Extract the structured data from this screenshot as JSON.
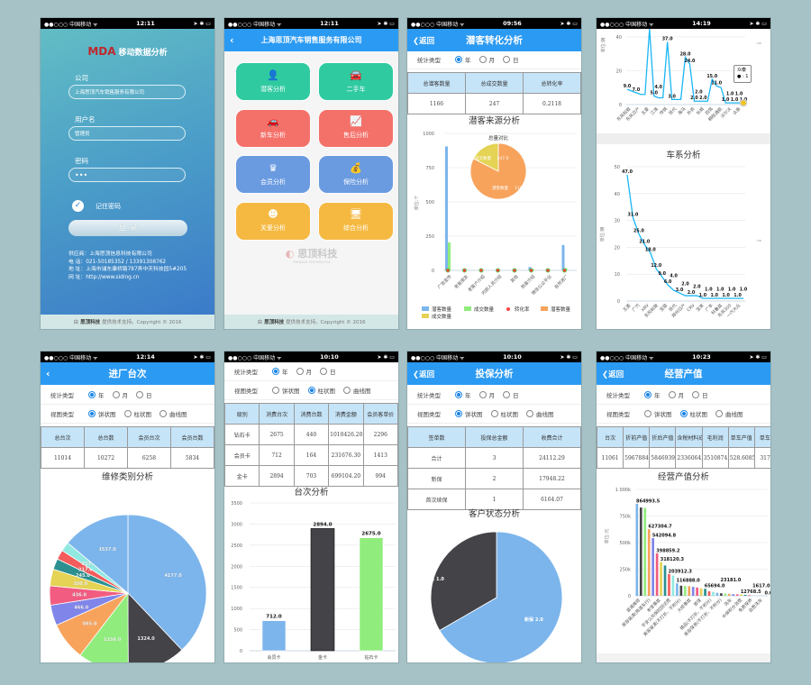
{
  "status_bar": {
    "carrier": "●●○○○ 中国移动 ᯤ",
    "icons": "➤ ✱ ▭"
  },
  "phones": {
    "login": {
      "time": "12:11",
      "logo_mark": "MDA",
      "app_title": "移动数据分析",
      "company_label": "公司",
      "company_value": "上海思顶汽车销售服务有限公司",
      "username_label": "用户名",
      "username_value": "管理员",
      "password_label": "密码",
      "password_value": "•••",
      "remember_label": "记住密码",
      "login_button": "登  录",
      "info": [
        "供应商：上海思顶信息科技有限公司",
        "电  话：021-50185352 / 13391308762",
        "地  址：上海市浦东康桥路787弄中天科技园5#205",
        "网  址：http://www.siding.cn"
      ],
      "footer": {
        "pre": "由",
        "brand": "思顶科技",
        "post": "提供技术支持。Copyright © 2016"
      }
    },
    "menu": {
      "time": "12:11",
      "title": "上海思顶汽车销售服务有限公司",
      "tiles": [
        {
          "label": "潜客分析",
          "icon": "👤",
          "color": "#2fcaa0"
        },
        {
          "label": "二手车",
          "icon": "🚘",
          "color": "#2fcaa0"
        },
        {
          "label": "新车分析",
          "icon": "🚗",
          "color": "#f4716a"
        },
        {
          "label": "售后分析",
          "icon": "📈",
          "color": "#f4716a"
        },
        {
          "label": "会员分析",
          "icon": "♛",
          "color": "#6a9be0"
        },
        {
          "label": "保险分析",
          "icon": "💰",
          "color": "#6a9be0"
        },
        {
          "label": "关爱分析",
          "icon": "☻",
          "color": "#f5b942"
        },
        {
          "label": "综合分析",
          "icon": "🖥",
          "color": "#f5b942"
        }
      ],
      "watermark": "思顶科技",
      "watermark_sub": "THINKING TECHNOLOGY",
      "footer": {
        "pre": "由",
        "brand": "思顶科技",
        "post": "提供技术支持。Copyright © 2016"
      }
    },
    "leads": {
      "time": "09:56",
      "back": "返回",
      "title": "潜客转化分析",
      "stat_label": "统计类型",
      "stat_options": [
        {
          "label": "年",
          "on": true
        },
        {
          "label": "月"
        },
        {
          "label": "日"
        }
      ],
      "table": {
        "headers": [
          "总潜客数量",
          "总成交数量",
          "总转化率"
        ],
        "rows": [
          [
            "1166",
            "247",
            "0.2118"
          ]
        ]
      }
    },
    "brands": {
      "time": "14:19",
      "tooltip_title": "众泰",
      "tooltip_value": "● : 1"
    },
    "intake": {
      "time": "12:14",
      "title": "进厂台次",
      "stat_label": "统计类型",
      "stat_options": [
        {
          "label": "年",
          "on": true
        },
        {
          "label": "月"
        },
        {
          "label": "日"
        }
      ],
      "view_label": "视图类型",
      "view_options": [
        {
          "label": "饼状图",
          "on": true
        },
        {
          "label": "柱状图"
        },
        {
          "label": "曲线图"
        }
      ],
      "table": {
        "headers": [
          "总台次",
          "总台数",
          "会员台次",
          "会员台数"
        ],
        "rows": [
          [
            "11014",
            "10272",
            "6258",
            "5834"
          ]
        ]
      }
    },
    "members": {
      "time": "10:10",
      "stat_label": "统计类型",
      "stat_options": [
        {
          "label": "年",
          "on": true
        },
        {
          "label": "月"
        },
        {
          "label": "日"
        }
      ],
      "view_label": "视图类型",
      "view_options": [
        {
          "label": "饼状图"
        },
        {
          "label": "柱状图",
          "on": true
        },
        {
          "label": "曲线图"
        }
      ],
      "table": {
        "headers": [
          "级别",
          "消费台次",
          "消费台数",
          "消费金额",
          "会员客单价"
        ],
        "rows": [
          [
            "钻石卡",
            "2675",
            "440",
            "1010426.20",
            "2296"
          ],
          [
            "会员卡",
            "712",
            "164",
            "231676.30",
            "1413"
          ],
          [
            "金卡",
            "2894",
            "703",
            "699104.20",
            "994"
          ]
        ]
      }
    },
    "insurance": {
      "time": "10:10",
      "back": "返回",
      "title": "投保分析",
      "stat_label": "统计类型",
      "stat_options": [
        {
          "label": "年",
          "on": true
        },
        {
          "label": "月"
        },
        {
          "label": "日"
        }
      ],
      "view_label": "视图类型",
      "view_options": [
        {
          "label": "饼状图",
          "on": true
        },
        {
          "label": "柱状图"
        },
        {
          "label": "曲线图"
        }
      ],
      "table": {
        "headers": [
          "签单数",
          "投保总金额",
          "收费合计"
        ],
        "rows": [
          [
            "合计",
            "3",
            "24112.29"
          ],
          [
            "新保",
            "2",
            "17948.22"
          ],
          [
            "首次续保",
            "1",
            "6164.07"
          ]
        ]
      }
    },
    "output": {
      "time": "10:23",
      "back": "返回",
      "title": "经营产值",
      "stat_label": "统计类型",
      "stat_options": [
        {
          "label": "年",
          "on": true
        },
        {
          "label": "月"
        },
        {
          "label": "日"
        }
      ],
      "view_label": "视图类型",
      "view_options": [
        {
          "label": "饼状图"
        },
        {
          "label": "柱状图",
          "on": true
        },
        {
          "label": "曲线图"
        }
      ],
      "table": {
        "headers": [
          "台次",
          "折前产值",
          "折后产值",
          "含税材料成本",
          "毛利润",
          "单车产值",
          "单车利"
        ],
        "rows": [
          [
            "11061",
            "5967884.65",
            "5846939.00",
            "2336064.5345",
            "3510874.47",
            "528.6085",
            "317.4"
          ]
        ]
      }
    }
  },
  "colors": {
    "accent": "#2b9af3",
    "palette": [
      "#7cb5ec",
      "#434348",
      "#90ed7d",
      "#f7a35c",
      "#8085e9",
      "#f15c80",
      "#e4d354",
      "#2b908f",
      "#f45b5b",
      "#91e8e1"
    ]
  },
  "chart_data": [
    {
      "id": "leads",
      "type": "bar",
      "title": "潜客来源分析",
      "ylabel": "单位:个",
      "ylim": [
        0,
        1000
      ],
      "yticks": [
        0,
        250,
        500,
        750,
        1000
      ],
      "categories": [
        "广告宣传",
        "老板朋友",
        "老客户介绍",
        "内部人员介绍",
        "其他",
        "熟客介绍",
        "微信公众平台",
        "自然进厂"
      ],
      "series": [
        {
          "name": "潜客数量",
          "values": [
            905,
            3,
            3,
            3,
            3,
            25,
            3,
            185
          ]
        },
        {
          "name": "成交数量",
          "values": [
            205,
            1,
            1,
            1,
            1,
            10,
            1,
            15
          ]
        },
        {
          "name": "转化率",
          "values": [
            0.23,
            0.3,
            0.3,
            0.3,
            0.3,
            0.4,
            0.3,
            0.08
          ]
        }
      ],
      "legend": [
        "潜客数量",
        "成交数量",
        "转化率",
        "潜客数量",
        "成交数量"
      ],
      "pie": {
        "title": "总量对比",
        "slices": [
          {
            "name": "潜客数量",
            "value": 1166.0
          },
          {
            "name": "成交数量",
            "value": 247.0
          }
        ]
      }
    },
    {
      "id": "brands-top",
      "type": "line",
      "ylim": [
        0,
        45
      ],
      "yticks": [
        0,
        20,
        40
      ],
      "ylabel": "单位:辆",
      "values": [
        9,
        8,
        7,
        6,
        6,
        60,
        5,
        4,
        4,
        37,
        3,
        3,
        3,
        28,
        24,
        2,
        2,
        2,
        2,
        15,
        11,
        10,
        1,
        1,
        1,
        1,
        1
      ],
      "point_labels": [
        "9.0",
        "",
        "7.0",
        "",
        "",
        "",
        "5.0",
        "4.0",
        "",
        "37.0",
        "3.0",
        "",
        "",
        "28.0",
        "24.0",
        "2.0",
        "2.0",
        "2.0",
        "",
        "15.0",
        "11.0",
        "",
        "1.0",
        "1.0",
        "1.0",
        "1.0",
        "1.0"
      ],
      "x_tick_labels": [
        "东风标致",
        "东风日产",
        "五菱",
        "江淮",
        "传祺",
        "现代",
        "海马",
        "外资",
        "长城",
        "四驾",
        "桐柏通航",
        "沃尔沃",
        "众泰"
      ]
    },
    {
      "id": "series",
      "type": "line",
      "title": "车系分析",
      "ylabel": "单位:辆",
      "ylim": [
        0,
        50
      ],
      "yticks": [
        0,
        10,
        20,
        30,
        40,
        50
      ],
      "values": [
        47,
        31,
        25,
        21,
        18,
        12,
        9,
        6,
        4,
        3,
        2,
        2,
        2,
        1,
        1,
        1,
        1,
        1,
        1,
        1,
        1
      ],
      "point_labels": [
        "47.0",
        "31.0",
        "25.0",
        "21.0",
        "18.0",
        "12.0",
        "9.0",
        "6.0",
        "4.0",
        "3.0",
        "2.0",
        "2.0",
        "2.0",
        "1.0",
        "1.0",
        "1.0",
        "1.0",
        "1.0",
        "1.0",
        "1.0",
        "1.0"
      ],
      "x_tick_labels": [
        "五菱",
        "广汽",
        "XRV",
        "东风标致",
        "宝骏",
        "现代",
        "郑州日产",
        "CRV",
        "宝来",
        "广丰",
        "科鲁兹",
        "东风300",
        "一汽大众"
      ]
    },
    {
      "id": "repair",
      "type": "pie",
      "title": "维修类别分析",
      "slices": [
        4177.0,
        1324.0,
        1156.0,
        865.0,
        466.0,
        436.0,
        380.0,
        245.0,
        217.0,
        211.0,
        1537.0
      ]
    },
    {
      "id": "visits",
      "type": "bar",
      "title": "台次分析",
      "ylim": [
        0,
        3500
      ],
      "yticks": [
        0,
        500,
        1000,
        1500,
        2000,
        2500,
        3000,
        3500
      ],
      "categories": [
        "会员卡",
        "金卡",
        "钻石卡"
      ],
      "values": [
        712.0,
        2894.0,
        2675.0
      ]
    },
    {
      "id": "customer",
      "type": "pie",
      "title": "客户状态分析",
      "slices": [
        {
          "name": "新保",
          "value": 2.0
        },
        {
          "name": "首次续保",
          "value": 1.0
        }
      ]
    },
    {
      "id": "output",
      "type": "bar",
      "title": "经营产值分析",
      "ylabel": "单位:元",
      "ylim": [
        0,
        1000000
      ],
      "yticks": [
        0,
        250000,
        500000,
        750000,
        1000000
      ],
      "ytick_labels": [
        "0",
        "250k",
        "500k",
        "750k",
        "1 000k"
      ],
      "values": [
        864993.5,
        830000,
        827000,
        627304.7,
        542094.8,
        398859.2,
        318120.3,
        285000,
        203912.3,
        190000,
        116888.0,
        95000,
        93000,
        90000,
        84000,
        78000,
        70000,
        65694.0,
        42000,
        36000,
        28000,
        23181.0,
        21000,
        18000,
        15000,
        13500,
        12768.5,
        9000,
        6000,
        1617.0,
        700,
        300,
        0.0
      ],
      "labeled": [
        "864993.5",
        "",
        "",
        "627304.7",
        "542094.8",
        "398859.2",
        "318120.3",
        "",
        "203912.3",
        "",
        "116888.0",
        "",
        "",
        "",
        "",
        "",
        "",
        "65694.0",
        "",
        "",
        "",
        "23181.0",
        "",
        "",
        "",
        "",
        "12768.5",
        "",
        "",
        "1617.0",
        "",
        "",
        "0.0"
      ],
      "x_tick_labels": [
        "普通维修",
        "美容装潢(两道车行)",
        "本保事故",
        "平安公司保险回访费",
        "美容装潢(不打折、不积分)",
        "大修事故",
        "首保",
        "精品(不打折、不积分)",
        "美容保养(不打折、不积分)",
        "洗车",
        "中保积分消费",
        "免费保养",
        "自费洗车"
      ]
    }
  ]
}
